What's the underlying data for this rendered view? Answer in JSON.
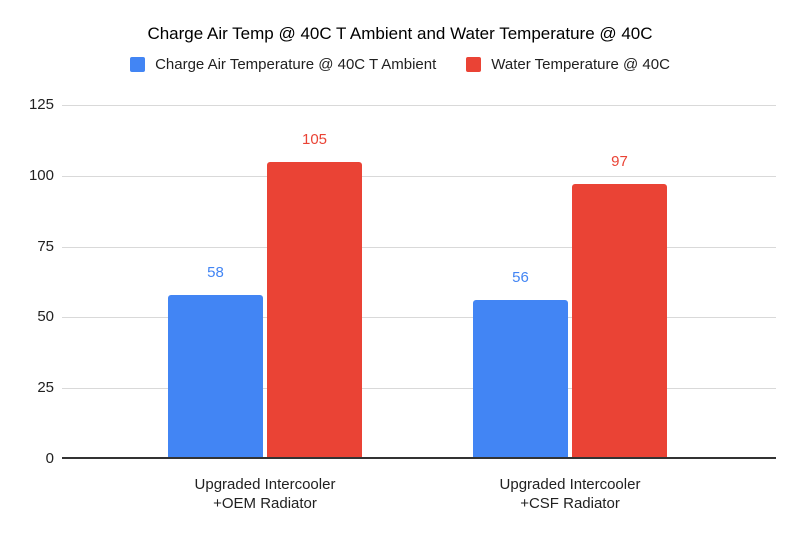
{
  "title": "Charge Air Temp @ 40C T Ambient and Water Temperature @ 40C",
  "legend": [
    {
      "label": "Charge Air Temperature @ 40C T Ambient",
      "color": "#4285F4"
    },
    {
      "label": "Water Temperature @ 40C",
      "color": "#EA4335"
    }
  ],
  "colors": {
    "series_blue": "#4285F4",
    "series_red": "#EA4335",
    "gridline": "#d9d9d9",
    "axis_line": "#333333",
    "text": "#212121"
  },
  "chart_data": {
    "type": "bar",
    "title": "Charge Air Temp @ 40C T Ambient and Water Temperature @ 40C",
    "categories": [
      "Upgraded Intercooler\n+OEM Radiator",
      "Upgraded Intercooler\n+CSF Radiator"
    ],
    "series": [
      {
        "name": "Charge Air Temperature @ 40C T Ambient",
        "color": "#4285F4",
        "values": [
          58,
          56
        ]
      },
      {
        "name": "Water Temperature @ 40C",
        "color": "#EA4335",
        "values": [
          105,
          97
        ]
      }
    ],
    "xlabel": "",
    "ylabel": "",
    "ylim": [
      0,
      125
    ],
    "yticks": [
      0,
      25,
      50,
      75,
      100,
      125
    ],
    "grid": true,
    "legend_position": "top",
    "data_labels": true
  }
}
